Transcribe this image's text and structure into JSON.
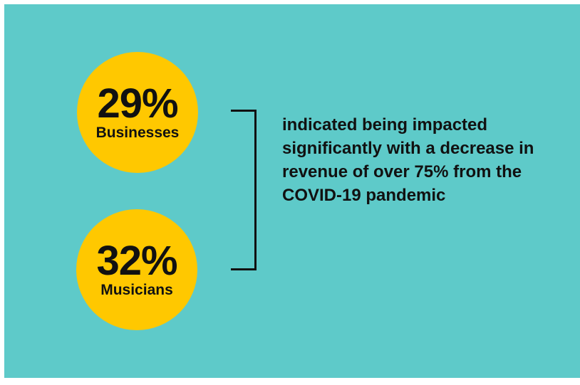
{
  "colors": {
    "background": "#5ecac9",
    "circle": "#ffc800",
    "text": "#111111"
  },
  "stats": [
    {
      "percent": "29%",
      "group": "Businesses"
    },
    {
      "percent": "32%",
      "group": "Musicians"
    }
  ],
  "statement": "indicated being impacted significantly with a decrease in revenue of over 75% from the COVID-19 pandemic"
}
